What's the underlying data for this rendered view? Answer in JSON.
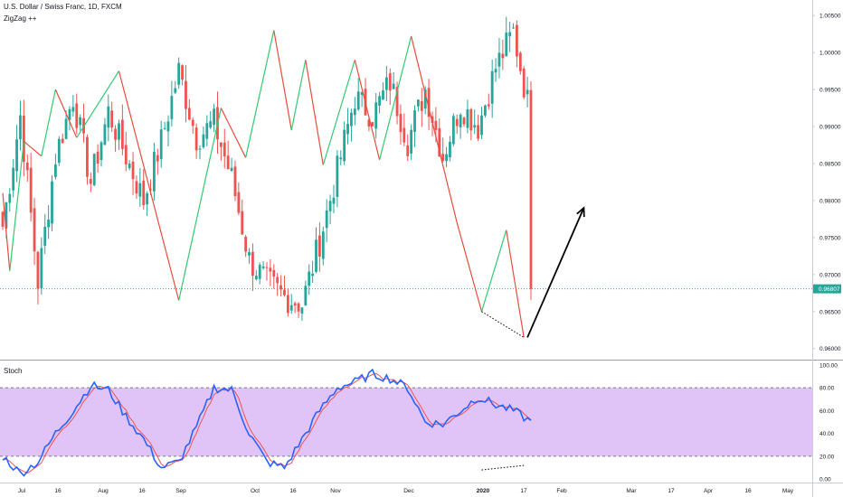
{
  "header": {
    "title": "U.S. Dollar / Swiss Franc, 1D, FXCM",
    "indicator": "ZigZag ++",
    "stoch_label": "Stoch"
  },
  "colors": {
    "up": "#26a69a",
    "down": "#ef5350",
    "zigzag_up": "#2ecc71",
    "zigzag_down": "#e74c3c",
    "price_line": "#26a69a",
    "stoch_k": "#2962ff",
    "stoch_d": "#ef5350",
    "stoch_band": "#e1c4f7",
    "axis_text": "#131722"
  },
  "chart_data": [
    {
      "type": "candlestick",
      "title": "U.S. Dollar / Swiss Franc, 1D, FXCM",
      "x_tick_labels": [
        "Jul",
        "16",
        "Aug",
        "16",
        "Sep",
        "Oct",
        "16",
        "Nov",
        "Dec",
        "2020",
        "17",
        "Feb",
        "Mar",
        "17",
        "Apr",
        "16",
        "May"
      ],
      "y_tick_labels": [
        "1.00500",
        "1.00000",
        "0.99500",
        "0.99000",
        "0.98500",
        "0.98000",
        "0.97500",
        "0.97000",
        "0.96500",
        "0.96000"
      ],
      "ylim": [
        0.9585,
        1.0071
      ],
      "last_price": "0.96807",
      "last_price_value": 0.96807,
      "price_anchors": [
        [
          0.9765,
          0.9915,
          0.969,
          0.986,
          0.994,
          0.9825,
          0.992,
          0.986,
          0.98,
          0.988
        ],
        [
          0.9975,
          0.9885,
          0.9905,
          0.983,
          0.972,
          0.969,
          0.967,
          0.966,
          0.9745,
          0.984
        ],
        [
          0.994,
          0.9915,
          0.996,
          0.988,
          0.995,
          0.986,
          0.993,
          0.99,
          0.998,
          1.0028
        ],
        [
          0.991,
          0.999,
          0.995,
          0.9985,
          0.987,
          0.993,
          0.9845,
          0.992,
          0.9965,
          0.997
        ],
        [
          0.985,
          0.994,
          0.993,
          0.988,
          0.998,
          0.9945,
          1.002,
          0.999,
          0.987,
          0.9855
        ],
        [
          0.983,
          0.981,
          0.977,
          0.984,
          0.976,
          0.97,
          0.965,
          0.97,
          0.974,
          0.97
        ],
        [
          0.9615,
          0.965,
          0.9681
        ]
      ],
      "zigzag": [
        [
          0,
          0.981
        ],
        [
          2,
          0.9705
        ],
        [
          6,
          0.988
        ],
        [
          11,
          0.986
        ],
        [
          15,
          0.995
        ],
        [
          21,
          0.9885
        ],
        [
          33,
          0.9975
        ],
        [
          50,
          0.9665
        ],
        [
          62,
          0.9925
        ],
        [
          69,
          0.9858
        ],
        [
          77,
          1.003
        ],
        [
          82,
          0.9895
        ],
        [
          86,
          0.999
        ],
        [
          91,
          0.9848
        ],
        [
          100,
          0.999
        ],
        [
          107,
          0.9855
        ],
        [
          116,
          1.0022
        ],
        [
          129,
          0.977
        ],
        [
          136,
          0.965
        ],
        [
          143,
          0.976
        ],
        [
          148,
          0.9615
        ]
      ],
      "divergence_line": [
        [
          136,
          0.965
        ],
        [
          148,
          0.9615
        ]
      ],
      "projection_arrow": [
        [
          149,
          0.9615
        ],
        [
          165,
          0.979
        ]
      ]
    },
    {
      "type": "line",
      "title": "Stoch",
      "y_tick_labels": [
        "100.00",
        "80.00",
        "60.00",
        "40.00",
        "20.00",
        "0.00"
      ],
      "ylim": [
        -3,
        103
      ],
      "band": [
        20,
        80
      ],
      "stoch_anchors": [
        [
          20,
          5,
          15,
          40,
          60,
          82,
          78,
          55,
          35,
          10
        ],
        [
          15,
          45,
          80,
          78,
          40,
          15,
          10,
          35,
          60,
          80
        ],
        [
          85,
          92,
          88,
          80,
          50,
          48,
          60,
          72,
          65,
          60
        ],
        [
          50,
          65,
          58,
          30,
          8,
          20,
          55,
          78,
          60,
          28
        ],
        [
          18,
          52,
          78,
          76,
          42,
          30,
          60,
          85,
          88,
          55
        ],
        [
          10,
          10,
          12,
          20,
          25,
          18,
          20,
          35,
          40,
          42
        ],
        [
          15,
          30,
          44
        ]
      ],
      "divergence_line": [
        [
          136,
          8
        ],
        [
          148,
          12
        ]
      ]
    }
  ]
}
